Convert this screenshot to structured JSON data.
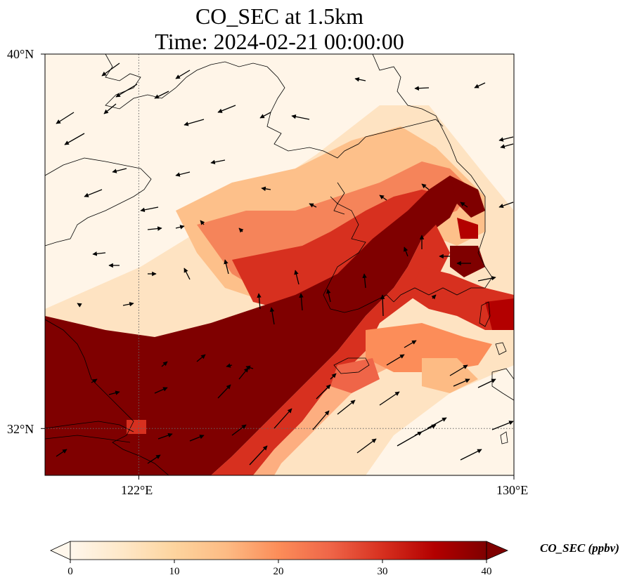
{
  "title": {
    "line1": "CO_SEC at 1.5km",
    "line2": "Time: 2024-02-21 00:00:00"
  },
  "map": {
    "lon_range": [
      120,
      130
    ],
    "lat_range": [
      31,
      40
    ],
    "lon_ticks": [
      {
        "value": 122,
        "label": "122°E"
      },
      {
        "value": 130,
        "label": "130°E"
      }
    ],
    "lat_ticks": [
      {
        "value": 40,
        "label": "40°N"
      },
      {
        "value": 32,
        "label": "32°N"
      }
    ],
    "gridlines": "dotted",
    "field": "CO_SEC",
    "vectors": "wind"
  },
  "colorbar": {
    "label": "CO_SEC (ppbv)",
    "min": 0,
    "max": 40,
    "ticks": [
      "0",
      "10",
      "20",
      "30",
      "40"
    ],
    "extend": "both",
    "colormap": "OrRd",
    "colors": [
      "#fff7ec",
      "#fee8c8",
      "#fdd49e",
      "#fdbb84",
      "#fc8d59",
      "#ef6548",
      "#d7301f",
      "#b30000",
      "#7f0000"
    ]
  }
}
